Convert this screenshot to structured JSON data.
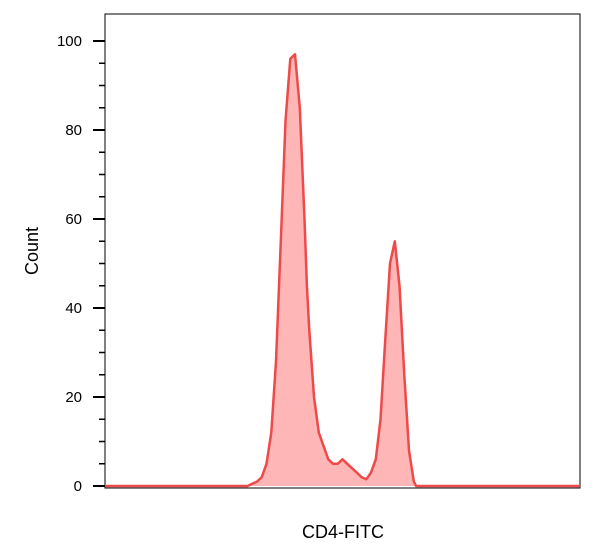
{
  "chart_data": {
    "type": "area",
    "title": "",
    "xlabel": "CD4-FITC",
    "ylabel": "Count",
    "ylim": [
      0,
      105
    ],
    "yticks": [
      0,
      20,
      40,
      60,
      80,
      100
    ],
    "ytick_labels": [
      "0",
      "20",
      "40",
      "60",
      "80",
      "100"
    ],
    "x_tick_labels_visible": false,
    "grid": false,
    "legend": "none",
    "series": [
      {
        "color": "#ee4a4a",
        "fill": "#ffb6b6",
        "x": [
          0,
          30,
          32,
          33,
          34,
          35,
          36,
          37,
          38,
          39,
          40,
          41,
          42,
          42.5,
          43,
          44,
          45,
          46,
          47,
          48,
          49,
          50,
          51,
          52,
          53,
          54,
          55,
          56,
          57,
          58,
          59,
          60,
          61,
          62,
          63,
          64,
          65,
          65.5,
          66,
          67,
          68,
          69,
          70,
          71,
          72,
          73,
          74,
          75,
          100
        ],
        "y": [
          0,
          0,
          1,
          2,
          5,
          12,
          28,
          55,
          82,
          96,
          97,
          85,
          60,
          45,
          35,
          20,
          12,
          9,
          6,
          5,
          5,
          6,
          5,
          4,
          3,
          2,
          1.5,
          3,
          6,
          15,
          33,
          50,
          55,
          45,
          25,
          8,
          1,
          0,
          0,
          0,
          0,
          0,
          0,
          0,
          0,
          0,
          0,
          0,
          0
        ]
      }
    ]
  }
}
